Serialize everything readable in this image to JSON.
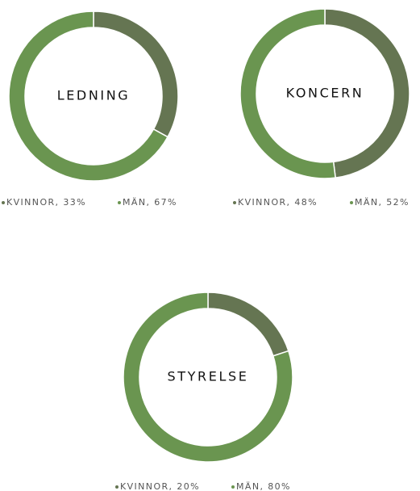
{
  "chart_data": [
    {
      "type": "donut",
      "title": "LEDNING",
      "values": [
        33,
        67
      ],
      "value_labels": [
        "KVINNOR, 33%",
        "MÄN, 67%"
      ],
      "colors": [
        "#657552",
        "#6a9550"
      ]
    },
    {
      "type": "donut",
      "title": "KONCERN",
      "values": [
        48,
        52
      ],
      "value_labels": [
        "KVINNOR, 48%",
        "MÄN, 52%"
      ],
      "colors": [
        "#657552",
        "#6a9550"
      ]
    },
    {
      "type": "donut",
      "title": "STYRELSE",
      "values": [
        20,
        80
      ],
      "value_labels": [
        "KVINNOR, 20%",
        "MÄN, 80%"
      ],
      "colors": [
        "#657552",
        "#6a9550"
      ]
    }
  ]
}
